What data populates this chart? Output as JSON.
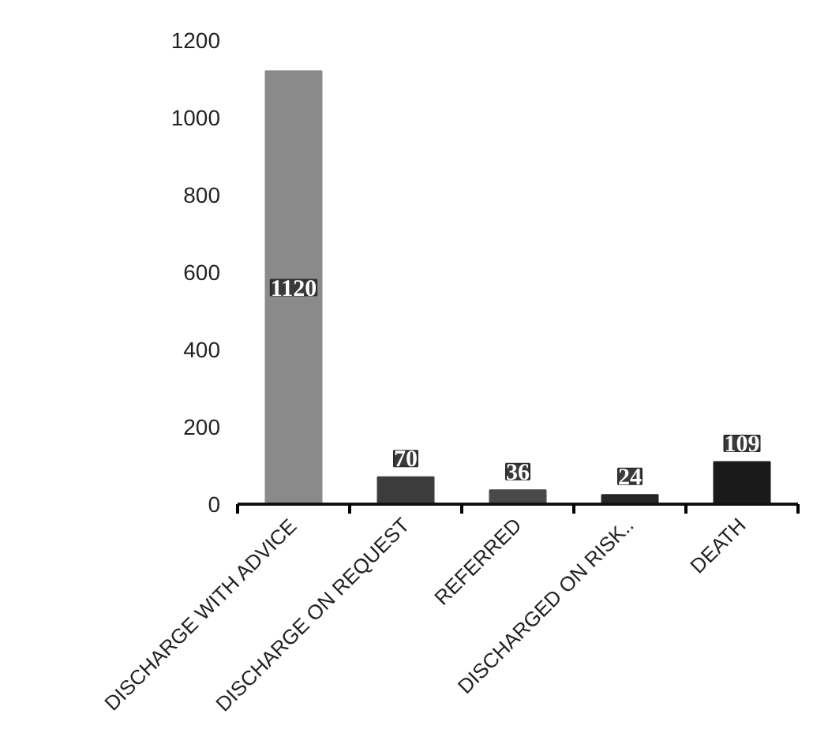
{
  "chart_data": {
    "type": "bar",
    "categories": [
      "DISCHARGE WITH ADVICE",
      "DISCHARGE ON REQUEST",
      "REFERRED",
      "DISCHARGED ON RISK..",
      "DEATH"
    ],
    "values": [
      1120,
      70,
      36,
      24,
      109
    ],
    "colors": [
      "#8a8a8a",
      "#3c3c3c",
      "#4a4a4a",
      "#262626",
      "#1a1a1a"
    ],
    "ylim": [
      0,
      1200
    ],
    "yticks": [
      0,
      200,
      400,
      600,
      800,
      1000,
      1200
    ],
    "data_labels": true,
    "grid": false
  }
}
